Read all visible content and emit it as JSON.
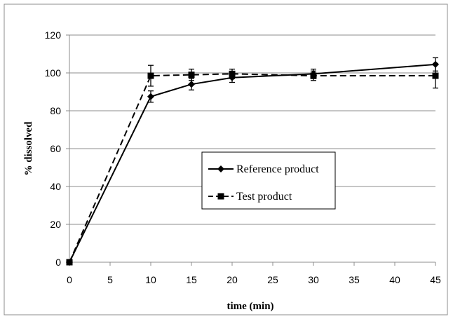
{
  "chart_data": {
    "type": "line",
    "title": "",
    "xlabel": "time (min)",
    "ylabel": "% dissolved",
    "x": [
      0,
      10,
      15,
      20,
      30,
      45
    ],
    "xlim": [
      0,
      45
    ],
    "ylim": [
      0,
      120
    ],
    "xticks": [
      0,
      5,
      10,
      15,
      20,
      25,
      30,
      35,
      40,
      45
    ],
    "yticks": [
      0,
      20,
      40,
      60,
      80,
      100,
      120
    ],
    "grid": "horizontal",
    "legend_position": "center",
    "series": [
      {
        "name": "Reference product",
        "line_style": "solid",
        "marker": "diamond",
        "color": "#000000",
        "values": [
          0,
          87.5,
          94,
          97.5,
          99.5,
          104.5
        ],
        "error": [
          0,
          3,
          3,
          2.5,
          2.5,
          3.5
        ]
      },
      {
        "name": "Test product",
        "line_style": "dashed",
        "marker": "square",
        "color": "#000000",
        "values": [
          0,
          98.5,
          99,
          99.5,
          98.5,
          98.5
        ],
        "error": [
          0,
          5.5,
          3,
          2.5,
          2.5,
          6.5
        ]
      }
    ]
  }
}
